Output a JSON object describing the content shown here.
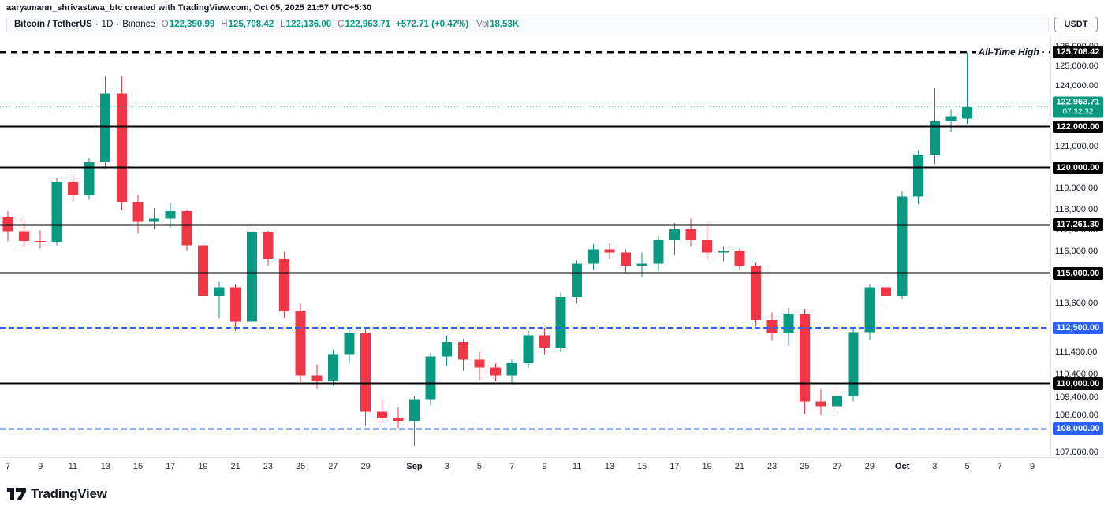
{
  "attribution": "aaryamann_shrivastava_btc created with TradingView.com, Oct 05, 2025 21:57 UTC+5:30",
  "legend": {
    "symbol": "Bitcoin / TetherUS",
    "sep": "·",
    "interval": "1D",
    "exchange": "Binance",
    "o_label": "O",
    "o_value": "122,390.99",
    "h_label": "H",
    "h_value": "125,708.42",
    "l_label": "L",
    "l_value": "122,136.00",
    "c_label": "C",
    "c_value": "122,963.71",
    "change": "+572.71 (+0.47%)",
    "vol_label": "Vol",
    "vol_value": "18.53K",
    "currency_button": "USDT"
  },
  "footer": {
    "logo_text": "TradingView"
  },
  "chart_data": {
    "type": "candlestick",
    "title": "Bitcoin / TetherUS 1D Binance",
    "scale": "log",
    "ylim": [
      106787,
      126560
    ],
    "colors": {
      "up": "#089981",
      "down": "#f23645"
    },
    "last_price": {
      "value": 122963.71,
      "label": "122,963.71",
      "countdown": "07:32:32"
    },
    "lines": [
      {
        "value": 125708.42,
        "label": "125,708.42",
        "color": "#000000",
        "width": 2.5,
        "dash": "8,6",
        "note": "All-Time High ·",
        "name": "all-time-high-line"
      },
      {
        "value": 122000,
        "label": "122,000.00",
        "color": "#000000",
        "width": 2,
        "name": "level-line-122000"
      },
      {
        "value": 120000,
        "label": "120,000.00",
        "color": "#000000",
        "width": 2,
        "name": "level-line-120000"
      },
      {
        "value": 117261.3,
        "label": "117,261.30",
        "color": "#000000",
        "width": 2,
        "name": "level-line-117261"
      },
      {
        "value": 115000,
        "label": "115,000.00",
        "color": "#000000",
        "width": 2,
        "name": "level-line-115000"
      },
      {
        "value": 112500,
        "label": "112,500.00",
        "color": "#2962ff",
        "width": 2,
        "dash": "7,4",
        "name": "level-line-112500"
      },
      {
        "value": 110000,
        "label": "110,000.00",
        "color": "#000000",
        "width": 2,
        "name": "level-line-110000"
      },
      {
        "value": 108000,
        "label": "108,000.00",
        "color": "#2962ff",
        "width": 2,
        "dash": "7,4",
        "name": "level-line-108000"
      }
    ],
    "price_ticks": [
      {
        "value": 126000,
        "label": "126,000.00"
      },
      {
        "value": 125000,
        "label": "125,000.00"
      },
      {
        "value": 124000,
        "label": "124,000.00"
      },
      {
        "value": 121000,
        "label": "121,000.00"
      },
      {
        "value": 119000,
        "label": "119,000.00"
      },
      {
        "value": 118000,
        "label": "118,000.00"
      },
      {
        "value": 117000,
        "label": "117,000.00"
      },
      {
        "value": 116000,
        "label": "116,000.00"
      },
      {
        "value": 113600,
        "label": "113,600.00"
      },
      {
        "value": 111400,
        "label": "111,400.00"
      },
      {
        "value": 110400,
        "label": "110,400.00"
      },
      {
        "value": 109400,
        "label": "109,400.00"
      },
      {
        "value": 108600,
        "label": "108,600.00"
      },
      {
        "value": 107000,
        "label": "107,000.00"
      }
    ],
    "x_labels": [
      {
        "i": 0,
        "t": "7"
      },
      {
        "i": 2,
        "t": "9"
      },
      {
        "i": 4,
        "t": "11"
      },
      {
        "i": 6,
        "t": "13"
      },
      {
        "i": 8,
        "t": "15"
      },
      {
        "i": 10,
        "t": "17"
      },
      {
        "i": 12,
        "t": "19"
      },
      {
        "i": 14,
        "t": "21"
      },
      {
        "i": 16,
        "t": "23"
      },
      {
        "i": 18,
        "t": "25"
      },
      {
        "i": 20,
        "t": "27"
      },
      {
        "i": 22,
        "t": "29"
      },
      {
        "i": 25,
        "t": "Sep",
        "bold": true
      },
      {
        "i": 27,
        "t": "3"
      },
      {
        "i": 29,
        "t": "5"
      },
      {
        "i": 31,
        "t": "7"
      },
      {
        "i": 33,
        "t": "9"
      },
      {
        "i": 35,
        "t": "11"
      },
      {
        "i": 37,
        "t": "13"
      },
      {
        "i": 39,
        "t": "15"
      },
      {
        "i": 41,
        "t": "17"
      },
      {
        "i": 43,
        "t": "19"
      },
      {
        "i": 45,
        "t": "21"
      },
      {
        "i": 47,
        "t": "23"
      },
      {
        "i": 49,
        "t": "25"
      },
      {
        "i": 51,
        "t": "27"
      },
      {
        "i": 53,
        "t": "29"
      },
      {
        "i": 55,
        "t": "Oct",
        "bold": true
      },
      {
        "i": 57,
        "t": "3"
      },
      {
        "i": 59,
        "t": "5"
      },
      {
        "i": 61,
        "t": "7"
      },
      {
        "i": 63,
        "t": "9"
      }
    ],
    "candles": [
      [
        "Aug 7",
        117600,
        117900,
        116500,
        116950
      ],
      [
        "Aug 8",
        116950,
        117500,
        116200,
        116500
      ],
      [
        "Aug 9",
        116500,
        117000,
        116150,
        116450
      ],
      [
        "Aug 10",
        116450,
        119500,
        116300,
        119300
      ],
      [
        "Aug 11",
        119300,
        119650,
        118350,
        118650
      ],
      [
        "Aug 12",
        118650,
        120450,
        118450,
        120250
      ],
      [
        "Aug 13",
        120250,
        124480,
        119950,
        123650
      ],
      [
        "Aug 14",
        123650,
        124500,
        117950,
        118350
      ],
      [
        "Aug 15",
        118350,
        118700,
        116850,
        117400
      ],
      [
        "Aug 16",
        117400,
        118050,
        117050,
        117550
      ],
      [
        "Aug 17",
        117550,
        118300,
        117150,
        117900
      ],
      [
        "Aug 18",
        117900,
        118000,
        116050,
        116300
      ],
      [
        "Aug 19",
        116300,
        116450,
        113650,
        113950
      ],
      [
        "Aug 20",
        113950,
        114600,
        112900,
        114350
      ],
      [
        "Aug 21",
        114350,
        114500,
        112350,
        112800
      ],
      [
        "Aug 22",
        112800,
        117300,
        112400,
        116900
      ],
      [
        "Aug 23",
        116900,
        117000,
        115350,
        115650
      ],
      [
        "Aug 24",
        115650,
        116000,
        112950,
        113250
      ],
      [
        "Aug 25",
        113250,
        113600,
        110050,
        110350
      ],
      [
        "Aug 26",
        110350,
        110850,
        109750,
        110100
      ],
      [
        "Aug 27",
        110100,
        111500,
        109900,
        111300
      ],
      [
        "Aug 28",
        111300,
        112400,
        110900,
        112250
      ],
      [
        "Aug 29",
        112250,
        112500,
        108150,
        108750
      ],
      [
        "Aug 30",
        108750,
        109300,
        108250,
        108500
      ],
      [
        "Aug 31",
        108500,
        108950,
        108050,
        108350
      ],
      [
        "Sep 1",
        108350,
        109450,
        107270,
        109300
      ],
      [
        "Sep 2",
        109300,
        111350,
        109050,
        111200
      ],
      [
        "Sep 3",
        111200,
        112150,
        110800,
        111850
      ],
      [
        "Sep 4",
        111850,
        112000,
        110550,
        111050
      ],
      [
        "Sep 5",
        111050,
        111400,
        110150,
        110700
      ],
      [
        "Sep 6",
        110700,
        110900,
        110100,
        110350
      ],
      [
        "Sep 7",
        110350,
        111050,
        110000,
        110900
      ],
      [
        "Sep 8",
        110900,
        112350,
        110700,
        112150
      ],
      [
        "Sep 9",
        112150,
        112500,
        111300,
        111600
      ],
      [
        "Sep 10",
        111600,
        114100,
        111400,
        113900
      ],
      [
        "Sep 11",
        113900,
        115600,
        113600,
        115450
      ],
      [
        "Sep 12",
        115450,
        116350,
        115150,
        116100
      ],
      [
        "Sep 13",
        116100,
        116400,
        115650,
        115950
      ],
      [
        "Sep 14",
        115950,
        116100,
        114950,
        115350
      ],
      [
        "Sep 15",
        115350,
        115950,
        114800,
        115450
      ],
      [
        "Sep 16",
        115450,
        116750,
        115100,
        116550
      ],
      [
        "Sep 17",
        116550,
        117350,
        115850,
        117050
      ],
      [
        "Sep 18",
        117050,
        117550,
        116250,
        116550
      ],
      [
        "Sep 19",
        116550,
        117450,
        115650,
        115950
      ],
      [
        "Sep 20",
        115950,
        116250,
        115550,
        116050
      ],
      [
        "Sep 21",
        116050,
        116150,
        115150,
        115350
      ],
      [
        "Sep 22",
        115350,
        115500,
        112550,
        112850
      ],
      [
        "Sep 23",
        112850,
        113200,
        111900,
        112250
      ],
      [
        "Sep 24",
        112250,
        113400,
        111700,
        113100
      ],
      [
        "Sep 25",
        113100,
        113350,
        108650,
        109200
      ],
      [
        "Sep 26",
        109200,
        109750,
        108600,
        109000
      ],
      [
        "Sep 27",
        109000,
        109700,
        108800,
        109450
      ],
      [
        "Sep 28",
        109450,
        112450,
        109200,
        112300
      ],
      [
        "Sep 29",
        112300,
        114500,
        111950,
        114350
      ],
      [
        "Sep 30",
        114350,
        114650,
        113450,
        113950
      ],
      [
        "Oct 1",
        113950,
        118850,
        113800,
        118600
      ],
      [
        "Oct 2",
        118600,
        120850,
        118250,
        120600
      ],
      [
        "Oct 3",
        120600,
        123900,
        120150,
        122250
      ],
      [
        "Oct 4",
        122250,
        122850,
        121750,
        122500
      ],
      [
        "Oct 5",
        122390.99,
        125708.42,
        122136.0,
        122963.71
      ]
    ]
  }
}
